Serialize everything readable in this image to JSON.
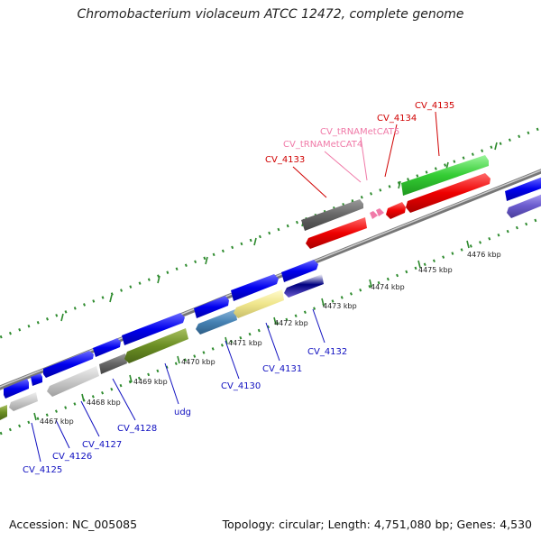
{
  "title": "Chromobacterium violaceum ATCC 12472, complete genome",
  "footer": {
    "accession": "Accession: NC_005085",
    "summary": "Topology: circular; Length: 4,751,080 bp; Genes: 4,530"
  },
  "colors": {
    "backbone": "#888888",
    "dots": "#2e8b2e",
    "label_blue": "#1010c0",
    "label_red": "#d00000",
    "label_pink": "#f07aa8"
  },
  "scale_labels": [
    {
      "text": "4467 kbp"
    },
    {
      "text": "4468 kbp"
    },
    {
      "text": "4469 kbp"
    },
    {
      "text": "4470 kbp"
    },
    {
      "text": "4471 kbp"
    },
    {
      "text": "4472 kbp"
    },
    {
      "text": "4473 kbp"
    },
    {
      "text": "4474 kbp"
    },
    {
      "text": "4475 kbp"
    },
    {
      "text": "4476 kbp"
    }
  ],
  "gene_labels": [
    {
      "name": "CV_4125",
      "color": "label_blue"
    },
    {
      "name": "CV_4126",
      "color": "label_blue"
    },
    {
      "name": "CV_4127",
      "color": "label_blue"
    },
    {
      "name": "CV_4128",
      "color": "label_blue"
    },
    {
      "name": "udg",
      "color": "label_blue"
    },
    {
      "name": "CV_4130",
      "color": "label_blue"
    },
    {
      "name": "CV_4131",
      "color": "label_blue"
    },
    {
      "name": "CV_4132",
      "color": "label_blue"
    },
    {
      "name": "CV_4133",
      "color": "label_red"
    },
    {
      "name": "CV_tRNAMetCAT4",
      "color": "label_pink"
    },
    {
      "name": "CV_tRNAMetCAT5",
      "color": "label_pink"
    },
    {
      "name": "CV_4134",
      "color": "label_red"
    },
    {
      "name": "CV_4135",
      "color": "label_red"
    }
  ]
}
